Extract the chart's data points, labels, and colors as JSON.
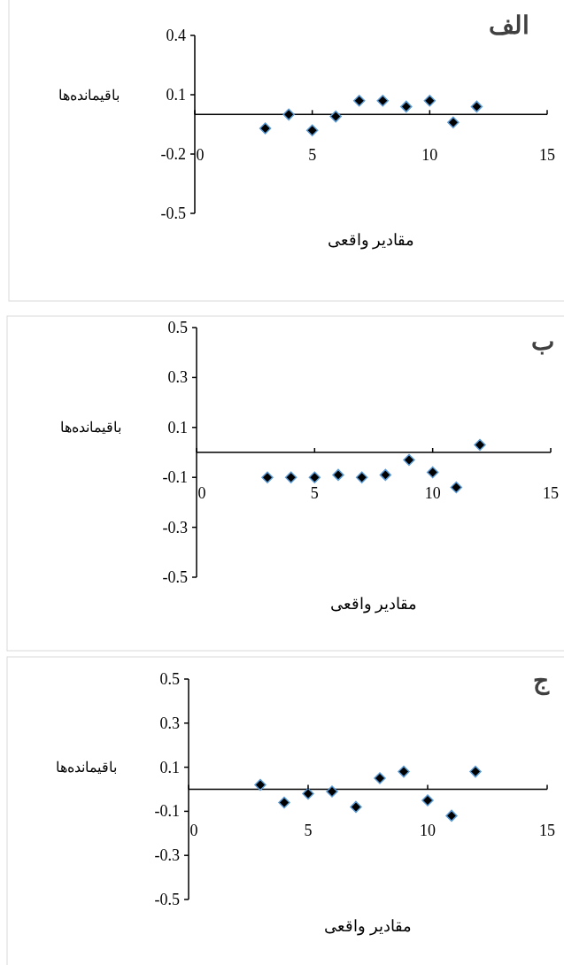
{
  "chart_data": [
    {
      "type": "scatter",
      "title": "الف",
      "xlabel": "مقادیر واقعی",
      "ylabel": "باقیمانده‌ها",
      "marker": "diamond",
      "grid": false,
      "x": [
        3,
        4,
        5,
        6,
        7,
        8,
        9,
        10,
        11,
        12
      ],
      "series": [
        {
          "color": "#000000",
          "values": [
            -0.07,
            0.0,
            -0.08,
            -0.01,
            0.07,
            0.07,
            0.04,
            0.07,
            -0.04,
            0.04
          ]
        }
      ],
      "xlim": [
        0,
        15
      ],
      "xticks": [
        0,
        5,
        10,
        15
      ],
      "ylim": [
        -0.5,
        0.4
      ],
      "yticks": [
        0.4,
        0.1,
        -0.2,
        -0.5
      ]
    },
    {
      "type": "scatter",
      "title": "ب",
      "xlabel": "مقادیر واقعی",
      "ylabel": "باقیمانده‌ها",
      "marker": "diamond",
      "grid": false,
      "x": [
        3,
        4,
        5,
        6,
        7,
        8,
        9,
        10,
        11,
        12
      ],
      "series": [
        {
          "color": "#000000",
          "values": [
            -0.1,
            -0.1,
            -0.1,
            -0.09,
            -0.1,
            -0.09,
            -0.03,
            -0.08,
            -0.14,
            0.03
          ]
        }
      ],
      "xlim": [
        0,
        15
      ],
      "xticks": [
        0,
        5,
        10,
        15
      ],
      "ylim": [
        -0.5,
        0.5
      ],
      "yticks": [
        0.5,
        0.3,
        0.1,
        -0.1,
        -0.3,
        -0.5
      ]
    },
    {
      "type": "scatter",
      "title": "ج",
      "xlabel": "مقادیر واقعی",
      "ylabel": "باقیمانده‌ها",
      "marker": "diamond",
      "grid": false,
      "x": [
        3,
        4,
        5,
        6,
        7,
        8,
        9,
        10,
        11,
        12
      ],
      "series": [
        {
          "color": "#000000",
          "values": [
            0.02,
            -0.06,
            -0.02,
            -0.01,
            -0.08,
            0.05,
            0.08,
            -0.05,
            -0.12,
            0.08
          ]
        }
      ],
      "xlim": [
        0,
        15
      ],
      "xticks": [
        0,
        5,
        10,
        15
      ],
      "ylim": [
        -0.5,
        0.5
      ],
      "yticks": [
        0.5,
        0.3,
        0.1,
        -0.1,
        -0.3,
        -0.5
      ]
    }
  ]
}
